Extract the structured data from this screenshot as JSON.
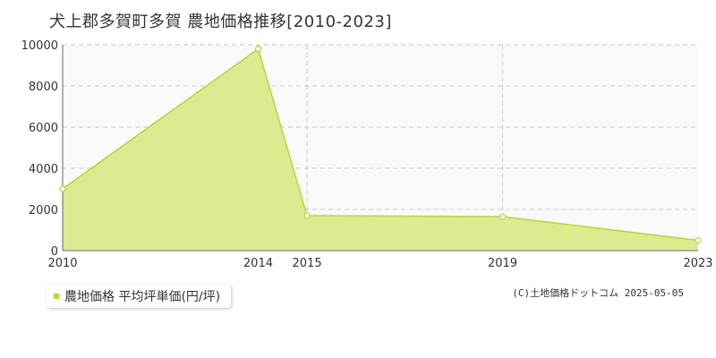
{
  "chart_data": {
    "type": "area",
    "title": "犬上郡多賀町多賀 農地価格推移[2010-2023]",
    "x": [
      "2010",
      "2014",
      "2015",
      "2019",
      "2023"
    ],
    "series": [
      {
        "name": "農地価格 平均坪単価(円/坪)",
        "values": [
          3000,
          9800,
          1700,
          1650,
          500
        ]
      }
    ],
    "y_ticks": [
      "0",
      "2000",
      "4000",
      "6000",
      "8000",
      "10000"
    ],
    "ylim": [
      0,
      10000
    ],
    "grid": true,
    "legend_position": "bottom-left",
    "colors": {
      "fill": "#dceb8f",
      "line": "#b5d733",
      "grid": "#c8c8c8",
      "plot_bg": "#fafafa",
      "legend_swatch": "#b5d733"
    }
  },
  "copyright": "(C)土地価格ドットコム 2025-05-05"
}
